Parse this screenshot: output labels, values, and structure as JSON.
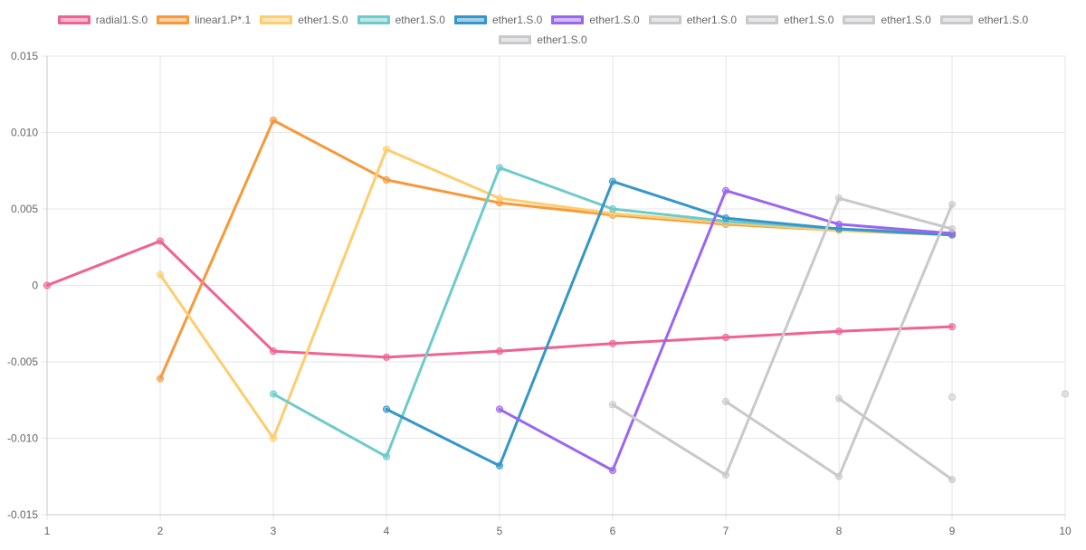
{
  "chart_data": {
    "type": "line",
    "title": "",
    "xlabel": "",
    "ylabel": "",
    "x": [
      1,
      2,
      3,
      4,
      5,
      6,
      7,
      8,
      9,
      10
    ],
    "xlim": [
      1,
      10
    ],
    "ylim": [
      -0.015,
      0.015
    ],
    "x_ticks": [
      "1",
      "2",
      "3",
      "4",
      "5",
      "6",
      "7",
      "8",
      "9",
      "10"
    ],
    "y_ticks": [
      "0.015",
      "0.010",
      "0.005",
      "0",
      "-0.005",
      "-0.010",
      "-0.015"
    ],
    "y_tick_values": [
      0.015,
      0.01,
      0.005,
      0,
      -0.005,
      -0.01,
      -0.015
    ],
    "grid": true,
    "legend_position": "top",
    "series": [
      {
        "name": "radial1.S.0",
        "color": "#f06292",
        "points": [
          [
            1,
            0.0
          ],
          [
            2,
            0.0029
          ],
          [
            3,
            -0.0043
          ],
          [
            4,
            -0.0047
          ],
          [
            5,
            -0.0043
          ],
          [
            6,
            -0.0038
          ],
          [
            7,
            -0.0034
          ],
          [
            8,
            -0.003
          ],
          [
            9,
            -0.0027
          ]
        ]
      },
      {
        "name": "linear1.P*.1",
        "color": "#f7993b",
        "points": [
          [
            2,
            -0.0061
          ],
          [
            3,
            0.0108
          ],
          [
            4,
            0.0069
          ],
          [
            5,
            0.0054
          ],
          [
            6,
            0.0046
          ],
          [
            7,
            0.004
          ],
          [
            8,
            0.0036
          ],
          [
            9,
            0.0033
          ]
        ]
      },
      {
        "name": "ether1.S.0",
        "color": "#fdcd6e",
        "points": [
          [
            2,
            0.0007
          ],
          [
            3,
            -0.01
          ],
          [
            4,
            0.0089
          ],
          [
            5,
            0.0057
          ],
          [
            6,
            0.0047
          ],
          [
            7,
            0.0041
          ],
          [
            8,
            0.0036
          ],
          [
            9,
            0.0034
          ]
        ]
      },
      {
        "name": "ether1.S.0",
        "color": "#6ecbcb",
        "points": [
          [
            3,
            -0.0071
          ],
          [
            4,
            -0.0112
          ],
          [
            5,
            0.0077
          ],
          [
            6,
            0.005
          ],
          [
            7,
            0.0042
          ],
          [
            8,
            0.0037
          ],
          [
            9,
            0.0034
          ]
        ]
      },
      {
        "name": "ether1.S.0",
        "color": "#3597c9",
        "points": [
          [
            4,
            -0.0081
          ],
          [
            5,
            -0.0118
          ],
          [
            6,
            0.0068
          ],
          [
            7,
            0.0044
          ],
          [
            8,
            0.0037
          ],
          [
            9,
            0.0033
          ]
        ]
      },
      {
        "name": "ether1.S.0",
        "color": "#9a66f0",
        "points": [
          [
            5,
            -0.0081
          ],
          [
            6,
            -0.0121
          ],
          [
            7,
            0.0062
          ],
          [
            8,
            0.004
          ],
          [
            9,
            0.0034
          ]
        ]
      },
      {
        "name": "ether1.S.0",
        "color": "#c9c9cb",
        "points": [
          [
            6,
            -0.0078
          ],
          [
            7,
            -0.0124
          ],
          [
            8,
            0.0057
          ],
          [
            9,
            0.0037
          ]
        ]
      },
      {
        "name": "ether1.S.0",
        "color": "#c9c9cb",
        "points": [
          [
            7,
            -0.0076
          ],
          [
            8,
            -0.0125
          ],
          [
            9,
            0.0053
          ]
        ]
      },
      {
        "name": "ether1.S.0",
        "color": "#c9c9cb",
        "points": [
          [
            8,
            -0.0074
          ],
          [
            9,
            -0.0127
          ]
        ]
      },
      {
        "name": "ether1.S.0",
        "color": "#c9c9cb",
        "points": [
          [
            9,
            -0.0073
          ]
        ]
      },
      {
        "name": "ether1.S.0",
        "color": "#c9c9cb",
        "points": [
          [
            10,
            -0.0071
          ]
        ]
      }
    ]
  }
}
